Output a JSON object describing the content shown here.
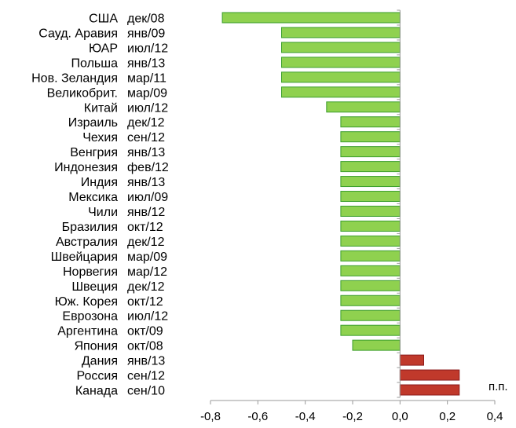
{
  "chart_data": {
    "type": "bar",
    "orientation": "horizontal",
    "xlim": [
      -0.8,
      0.4
    ],
    "x_ticks": [
      "-0,8",
      "-0,6",
      "-0,4",
      "-0,2",
      "0,0",
      "0,2",
      "0,4"
    ],
    "unit_label": "п.п.",
    "grid": false,
    "legend": "none",
    "colors": {
      "negative": "#8fd14f",
      "negative_border": "#3c9e2c",
      "positive": "#c0392b",
      "positive_border": "#8b1a1a"
    },
    "categories": [
      "США",
      "Сауд. Аравия",
      "ЮАР",
      "Польша",
      "Нов. Зеландия",
      "Великобрит.",
      "Китай",
      "Израиль",
      "Чехия",
      "Венгрия",
      "Индонезия",
      "Индия",
      "Мексика",
      "Чили",
      "Бразилия",
      "Австралия",
      "Швейцария",
      "Норвегия",
      "Швеция",
      "Юж. Корея",
      "Еврозона",
      "Аргентина",
      "Япония",
      "Дания",
      "Россия",
      "Канада"
    ],
    "dates": [
      "дек/08",
      "янв/09",
      "июл/12",
      "янв/13",
      "мар/11",
      "мар/09",
      "июл/12",
      "дек/12",
      "сен/12",
      "янв/13",
      "фев/12",
      "янв/13",
      "июл/09",
      "янв/12",
      "окт/12",
      "дек/12",
      "мар/09",
      "мар/12",
      "дек/12",
      "окт/12",
      "июл/12",
      "окт/09",
      "окт/08",
      "янв/13",
      "сен/12",
      "сен/10"
    ],
    "values": [
      -0.75,
      -0.5,
      -0.5,
      -0.5,
      -0.5,
      -0.5,
      -0.31,
      -0.25,
      -0.25,
      -0.25,
      -0.25,
      -0.25,
      -0.25,
      -0.25,
      -0.25,
      -0.25,
      -0.25,
      -0.25,
      -0.25,
      -0.25,
      -0.25,
      -0.25,
      -0.2,
      0.1,
      0.25,
      0.25
    ]
  }
}
